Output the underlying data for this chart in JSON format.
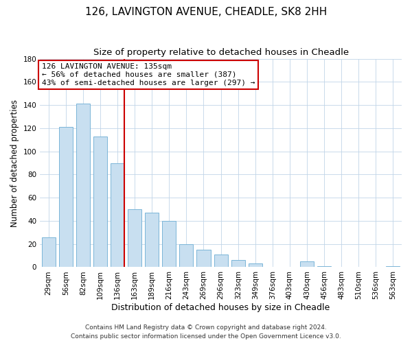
{
  "title": "126, LAVINGTON AVENUE, CHEADLE, SK8 2HH",
  "subtitle": "Size of property relative to detached houses in Cheadle",
  "xlabel": "Distribution of detached houses by size in Cheadle",
  "ylabel": "Number of detached properties",
  "bar_color": "#c8dff0",
  "bar_edge_color": "#7ab5d8",
  "categories": [
    "29sqm",
    "56sqm",
    "82sqm",
    "109sqm",
    "136sqm",
    "163sqm",
    "189sqm",
    "216sqm",
    "243sqm",
    "269sqm",
    "296sqm",
    "323sqm",
    "349sqm",
    "376sqm",
    "403sqm",
    "430sqm",
    "456sqm",
    "483sqm",
    "510sqm",
    "536sqm",
    "563sqm"
  ],
  "values": [
    26,
    121,
    141,
    113,
    90,
    50,
    47,
    40,
    20,
    15,
    11,
    6,
    3,
    0,
    0,
    5,
    1,
    0,
    0,
    0,
    1
  ],
  "property_line_idx": 4,
  "property_line_color": "#cc0000",
  "annotation_line1": "126 LAVINGTON AVENUE: 135sqm",
  "annotation_line2": "← 56% of detached houses are smaller (387)",
  "annotation_line3": "43% of semi-detached houses are larger (297) →",
  "annotation_box_color": "#ffffff",
  "annotation_box_edge": "#cc0000",
  "ylim": [
    0,
    180
  ],
  "yticks": [
    0,
    20,
    40,
    60,
    80,
    100,
    120,
    140,
    160,
    180
  ],
  "footer_line1": "Contains HM Land Registry data © Crown copyright and database right 2024.",
  "footer_line2": "Contains public sector information licensed under the Open Government Licence v3.0.",
  "background_color": "#ffffff",
  "grid_color": "#c0d4e8",
  "title_fontsize": 11,
  "subtitle_fontsize": 9.5,
  "xlabel_fontsize": 9,
  "ylabel_fontsize": 8.5,
  "tick_fontsize": 7.5,
  "annotation_fontsize": 8,
  "footer_fontsize": 6.5
}
